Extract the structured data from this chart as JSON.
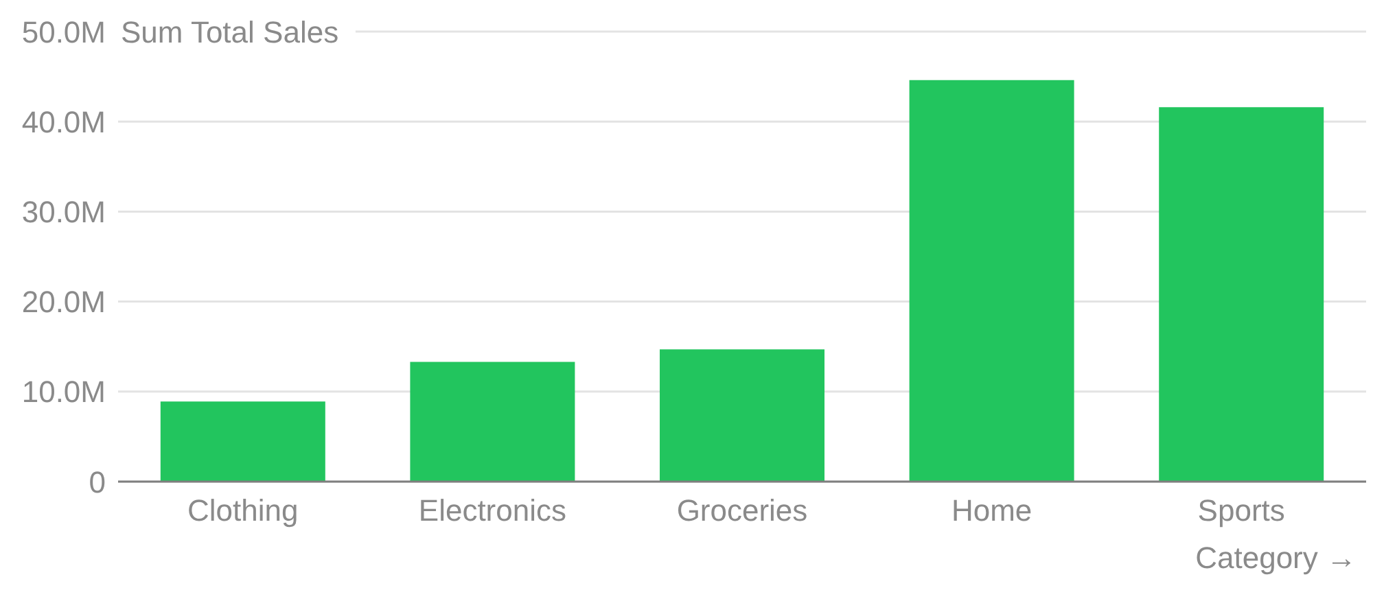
{
  "chart_data": {
    "type": "bar",
    "xlabel": "Category →",
    "ylabel": "Sum Total Sales",
    "categories": [
      "Clothing",
      "Electronics",
      "Groceries",
      "Home",
      "Sports"
    ],
    "values": [
      8900000,
      13300000,
      14700000,
      44600000,
      41600000
    ],
    "color": "#22c55e",
    "ylim": [
      0,
      50000000
    ],
    "yticks": [
      0,
      {
        "value": 10000000,
        "label": "10.0M"
      },
      {
        "value": 20000000,
        "label": "20.0M"
      },
      {
        "value": 30000000,
        "label": "30.0M"
      },
      {
        "value": 40000000,
        "label": "40.0M"
      },
      {
        "value": 50000000,
        "label": "50.0M"
      }
    ],
    "grid": "y"
  }
}
